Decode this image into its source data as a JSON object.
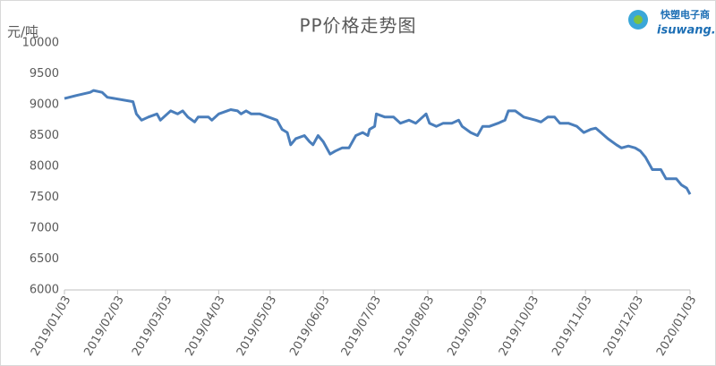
{
  "chart_data": {
    "type": "line",
    "title": "PP价格走势图",
    "y_label": "元/吨",
    "logo": {
      "brand": "快塑电子商",
      "site": "isuwang.co"
    },
    "x": [
      "2019/01/03",
      "2019/01/10",
      "2019/01/18",
      "2019/01/20",
      "2019/01/25",
      "2019/01/28",
      "2019/02/12",
      "2019/02/14",
      "2019/02/17",
      "2019/02/21",
      "2019/02/26",
      "2019/02/28",
      "2019/03/04",
      "2019/03/06",
      "2019/03/10",
      "2019/03/13",
      "2019/03/16",
      "2019/03/20",
      "2019/03/22",
      "2019/03/28",
      "2019/03/30",
      "2019/04/03",
      "2019/04/10",
      "2019/04/14",
      "2019/04/16",
      "2019/04/19",
      "2019/04/22",
      "2019/04/27",
      "2019/05/02",
      "2019/05/07",
      "2019/05/10",
      "2019/05/13",
      "2019/05/15",
      "2019/05/18",
      "2019/05/23",
      "2019/05/26",
      "2019/05/28",
      "2019/05/31",
      "2019/06/03",
      "2019/06/07",
      "2019/06/10",
      "2019/06/14",
      "2019/06/18",
      "2019/06/22",
      "2019/06/26",
      "2019/06/29",
      "2019/06/30",
      "2019/07/03",
      "2019/07/04",
      "2019/07/09",
      "2019/07/14",
      "2019/07/18",
      "2019/07/23",
      "2019/07/27",
      "2019/07/31",
      "2019/08/02",
      "2019/08/04",
      "2019/08/08",
      "2019/08/12",
      "2019/08/17",
      "2019/08/21",
      "2019/08/23",
      "2019/08/28",
      "2019/09/01",
      "2019/09/04",
      "2019/09/08",
      "2019/09/13",
      "2019/09/17",
      "2019/09/19",
      "2019/09/23",
      "2019/09/28",
      "2019/10/05",
      "2019/10/08",
      "2019/10/12",
      "2019/10/16",
      "2019/10/19",
      "2019/10/24",
      "2019/10/29",
      "2019/11/02",
      "2019/11/06",
      "2019/11/09",
      "2019/11/12",
      "2019/11/16",
      "2019/11/21",
      "2019/11/24",
      "2019/11/28",
      "2019/12/02",
      "2019/12/05",
      "2019/12/08",
      "2019/12/12",
      "2019/12/17",
      "2019/12/20",
      "2019/12/26",
      "2019/12/29",
      "2020/01/01",
      "2020/01/03"
    ],
    "series": [
      {
        "name": "PP",
        "color": "#4a7ebb",
        "values": [
          9100,
          9150,
          9200,
          9230,
          9200,
          9120,
          9050,
          8850,
          8750,
          8800,
          8850,
          8750,
          8850,
          8900,
          8850,
          8900,
          8800,
          8720,
          8800,
          8800,
          8750,
          8850,
          8920,
          8900,
          8850,
          8900,
          8850,
          8850,
          8800,
          8750,
          8600,
          8550,
          8350,
          8450,
          8500,
          8400,
          8350,
          8500,
          8400,
          8200,
          8250,
          8300,
          8300,
          8500,
          8550,
          8500,
          8600,
          8650,
          8850,
          8800,
          8800,
          8700,
          8750,
          8700,
          8800,
          8850,
          8700,
          8650,
          8700,
          8700,
          8750,
          8650,
          8550,
          8500,
          8650,
          8650,
          8700,
          8750,
          8900,
          8900,
          8800,
          8750,
          8720,
          8800,
          8800,
          8700,
          8700,
          8650,
          8550,
          8600,
          8620,
          8550,
          8450,
          8350,
          8300,
          8330,
          8300,
          8250,
          8150,
          7950,
          7950,
          7800,
          7800,
          7700,
          7650,
          7550
        ]
      }
    ],
    "xticks": [
      "2019/01/03",
      "2019/02/03",
      "2019/03/03",
      "2019/04/03",
      "2019/05/03",
      "2019/06/03",
      "2019/07/03",
      "2019/08/03",
      "2019/09/03",
      "2019/10/03",
      "2019/11/03",
      "2019/12/03",
      "2020/01/03"
    ],
    "xlim": [
      "2019/01/03",
      "2020/01/03"
    ],
    "ylim": [
      6000,
      10000
    ],
    "yticks": [
      6000,
      6500,
      7000,
      7500,
      8000,
      8500,
      9000,
      9500,
      10000
    ],
    "grid": false
  }
}
